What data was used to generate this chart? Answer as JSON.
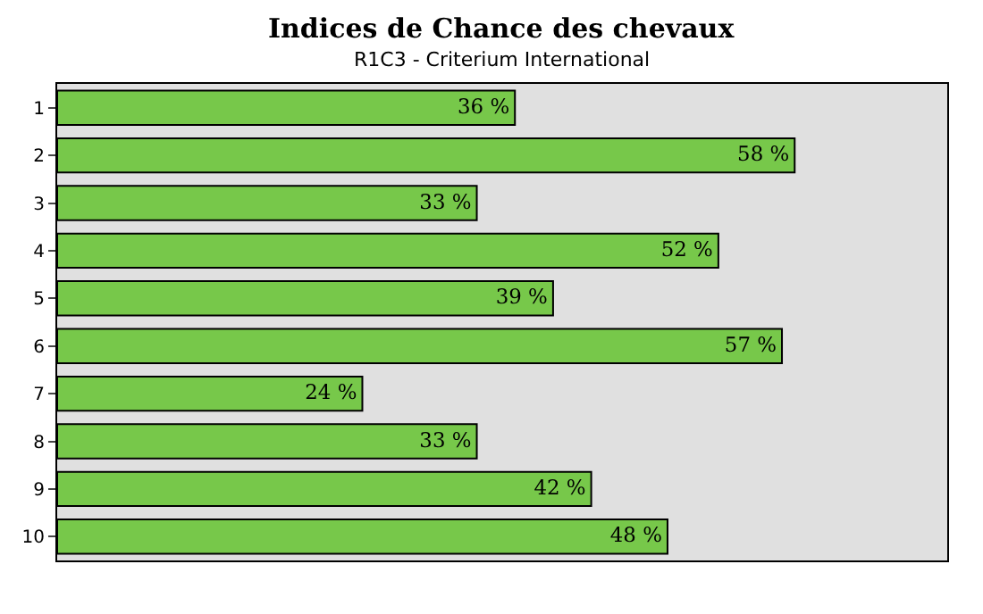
{
  "chart_data": {
    "type": "bar",
    "orientation": "horizontal",
    "title": "Indices de Chance des chevaux",
    "subtitle": "R1C3 - Criterium International",
    "categories": [
      "1",
      "2",
      "3",
      "4",
      "5",
      "6",
      "7",
      "8",
      "9",
      "10"
    ],
    "values": [
      36,
      58,
      33,
      52,
      39,
      57,
      24,
      33,
      42,
      48
    ],
    "value_labels": [
      "36 %",
      "58 %",
      "33 %",
      "52 %",
      "39 %",
      "57 %",
      "24 %",
      "33 %",
      "42 %",
      "48 %"
    ],
    "color": "#77c84a",
    "xlim": [
      0,
      70
    ],
    "grid": false,
    "legend": false,
    "tick_labels": "y"
  }
}
